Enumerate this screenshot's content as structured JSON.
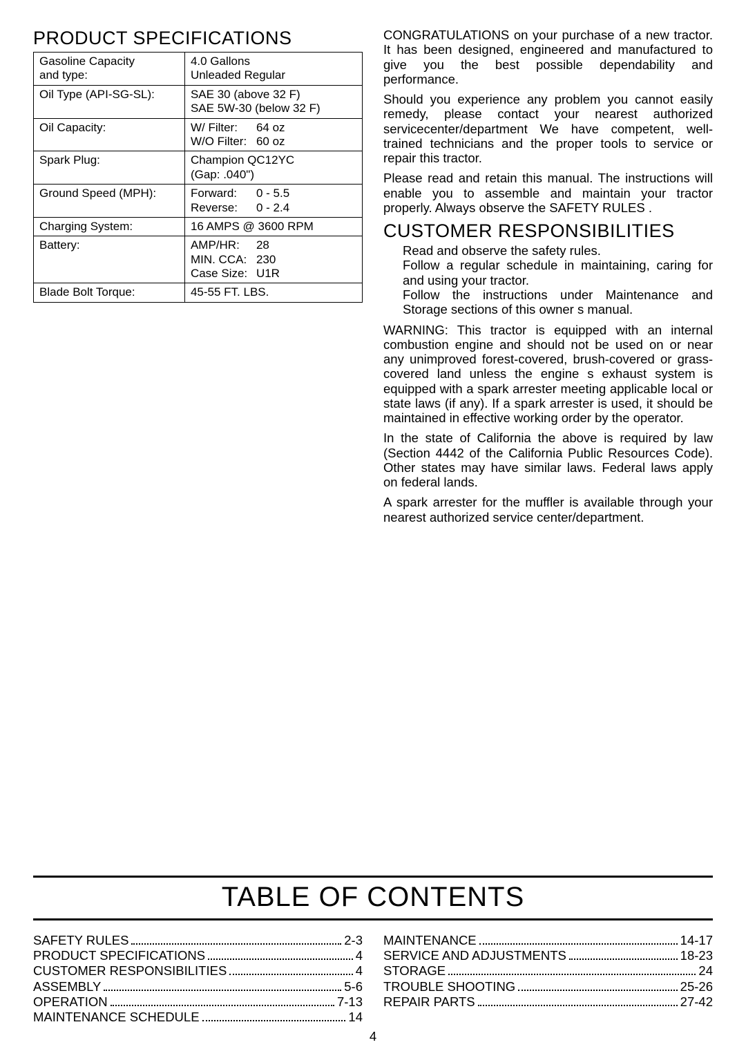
{
  "left": {
    "title": "PRODUCT SPECIFICATIONS",
    "rows": [
      {
        "label": "Gasoline Capacity\nand type:",
        "value": "4.0 Gallons\nUnleaded Regular"
      },
      {
        "label": "Oil Type (API-SG-SL):",
        "value": "SAE 30 (above 32 F)\nSAE 5W-30 (below 32 F)"
      },
      {
        "label": "Oil Capacity:",
        "sub": [
          {
            "l": "W/ Filter:",
            "v": "64 oz"
          },
          {
            "l": "W/O Filter:",
            "v": "60 oz"
          }
        ]
      },
      {
        "label": "Spark Plug:",
        "value": "Champion QC12YC\n(Gap: .040\")"
      },
      {
        "label": "Ground Speed (MPH):",
        "sub": [
          {
            "l": "Forward:",
            "v": "0 - 5.5"
          },
          {
            "l": "Reverse:",
            "v": "0 - 2.4"
          }
        ]
      },
      {
        "label": "Charging System:",
        "value": "16 AMPS @ 3600 RPM"
      },
      {
        "label": "Battery:",
        "sub": [
          {
            "l": "AMP/HR:",
            "v": "28"
          },
          {
            "l": "MIN. CCA:",
            "v": "230"
          },
          {
            "l": "Case Size:",
            "v": "U1R"
          }
        ]
      },
      {
        "label": "Blade Bolt Torque:",
        "value": "45-55 FT. LBS."
      }
    ]
  },
  "right": {
    "p1": "CONGRATULATIONS on your purchase of a new tractor. It has been designed, engineered and manufactured to give you the best possible dependability and performance.",
    "p2": "Should you experience any problem you cannot easily remedy, please contact your nearest authorized servicecenter/department We have competent, well-trained technicians and the proper tools to service or repair this tractor.",
    "p3": "Please read and retain this manual. The instructions will enable you to assemble and maintain your tractor properly. Always observe the SAFETY RULES .",
    "resp_title": "CUSTOMER RESPONSIBILITIES",
    "resp": [
      "Read and observe the safety rules.",
      "Follow a regular schedule in maintaining, caring for and using your tractor.",
      "Follow the instructions under Maintenance and Storage sections of this owner s manual."
    ],
    "p4": "WARNING: This tractor is equipped with an internal combustion engine and should not be used on or near any unimproved forest-covered, brush-covered or grass-covered land unless the engine s exhaust system is equipped with a spark arrester meeting applicable local or state laws (if any). If a spark arrester is used, it should be maintained in effective working order by the operator.",
    "p5": "In the state of California the above is required by law (Section 4442 of the California Public Resources Code). Other states may have similar laws. Federal laws apply on federal lands.",
    "p6": "A spark arrester for the muffler is available through your nearest authorized service center/department."
  },
  "toc": {
    "title": "TABLE OF CONTENTS",
    "left": [
      {
        "t": "SAFETY RULES",
        "p": "2-3"
      },
      {
        "t": "PRODUCT SPECIFICATIONS",
        "p": "4"
      },
      {
        "t": "CUSTOMER RESPONSIBILITIES",
        "p": "4"
      },
      {
        "t": "ASSEMBLY",
        "p": "5-6"
      },
      {
        "t": "OPERATION",
        "p": "7-13"
      },
      {
        "t": "MAINTENANCE SCHEDULE",
        "p": "14"
      }
    ],
    "right": [
      {
        "t": "MAINTENANCE",
        "p": "14-17"
      },
      {
        "t": "SERVICE AND ADJUSTMENTS",
        "p": "18-23"
      },
      {
        "t": "STORAGE",
        "p": "24"
      },
      {
        "t": "TROUBLE SHOOTING",
        "p": "25-26"
      },
      {
        "t": "REPAIR PARTS",
        "p": "27-42"
      }
    ]
  },
  "page_number": "4"
}
